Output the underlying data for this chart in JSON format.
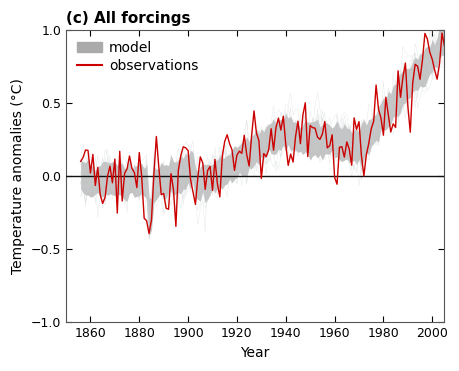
{
  "title": "(c) All forcings",
  "xlabel": "Year",
  "ylabel": "Temperature anomalies (°C)",
  "xlim": [
    1850,
    2005
  ],
  "ylim": [
    -1.0,
    1.0
  ],
  "xticks": [
    1860,
    1880,
    1900,
    1920,
    1940,
    1960,
    1980,
    2000
  ],
  "yticks": [
    -1.0,
    -0.5,
    0.0,
    0.5,
    1.0
  ],
  "legend_labels": [
    "model",
    "observations"
  ],
  "model_color": "#aaaaaa",
  "model_edge_color": "#b0b8c0",
  "obs_color": "#cc0000",
  "zero_line_color": "#111111",
  "background_color": "#ffffff",
  "title_fontsize": 11,
  "axis_fontsize": 10,
  "tick_fontsize": 9,
  "seed": 17
}
